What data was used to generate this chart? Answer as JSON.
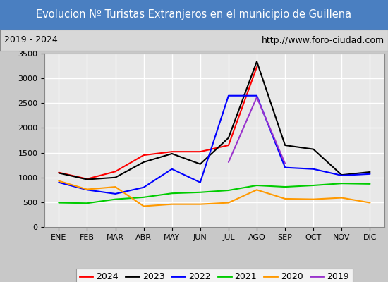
{
  "title": "Evolucion Nº Turistas Extranjeros en el municipio de Guillena",
  "subtitle_left": "2019 - 2024",
  "subtitle_right": "http://www.foro-ciudad.com",
  "title_bg_color": "#4a7fc1",
  "title_text_color": "#ffffff",
  "months": [
    "ENE",
    "FEB",
    "MAR",
    "ABR",
    "MAY",
    "JUN",
    "JUL",
    "AGO",
    "SEP",
    "OCT",
    "NOV",
    "DIC"
  ],
  "ylim": [
    0,
    3500
  ],
  "yticks": [
    0,
    500,
    1000,
    1500,
    2000,
    2500,
    3000,
    3500
  ],
  "series": {
    "2024": {
      "color": "#ff0000",
      "data": [
        1100,
        970,
        1120,
        1450,
        1520,
        1520,
        1650,
        3230,
        null,
        null,
        null,
        null
      ]
    },
    "2023": {
      "color": "#000000",
      "data": [
        1090,
        960,
        1000,
        1310,
        1480,
        1270,
        1800,
        3340,
        1650,
        1570,
        1050,
        1110
      ]
    },
    "2022": {
      "color": "#0000ff",
      "data": [
        900,
        750,
        670,
        800,
        1170,
        900,
        2650,
        2650,
        1200,
        1170,
        1040,
        1070
      ]
    },
    "2021": {
      "color": "#00cc00",
      "data": [
        490,
        480,
        560,
        600,
        680,
        700,
        740,
        840,
        810,
        840,
        880,
        870
      ]
    },
    "2020": {
      "color": "#ff9900",
      "data": [
        930,
        760,
        810,
        420,
        460,
        460,
        490,
        750,
        570,
        560,
        590,
        490
      ]
    },
    "2019": {
      "color": "#9933cc",
      "data": [
        null,
        null,
        null,
        null,
        null,
        null,
        1310,
        2620,
        1280,
        null,
        null,
        null
      ]
    }
  },
  "legend_order": [
    "2024",
    "2023",
    "2022",
    "2021",
    "2020",
    "2019"
  ],
  "plot_bg_color": "#e8e8e8",
  "grid_color": "#ffffff",
  "grid_linewidth": 1.0,
  "outer_bg_color": "#c8c8c8",
  "subtitle_bg_color": "#d8d8d8"
}
